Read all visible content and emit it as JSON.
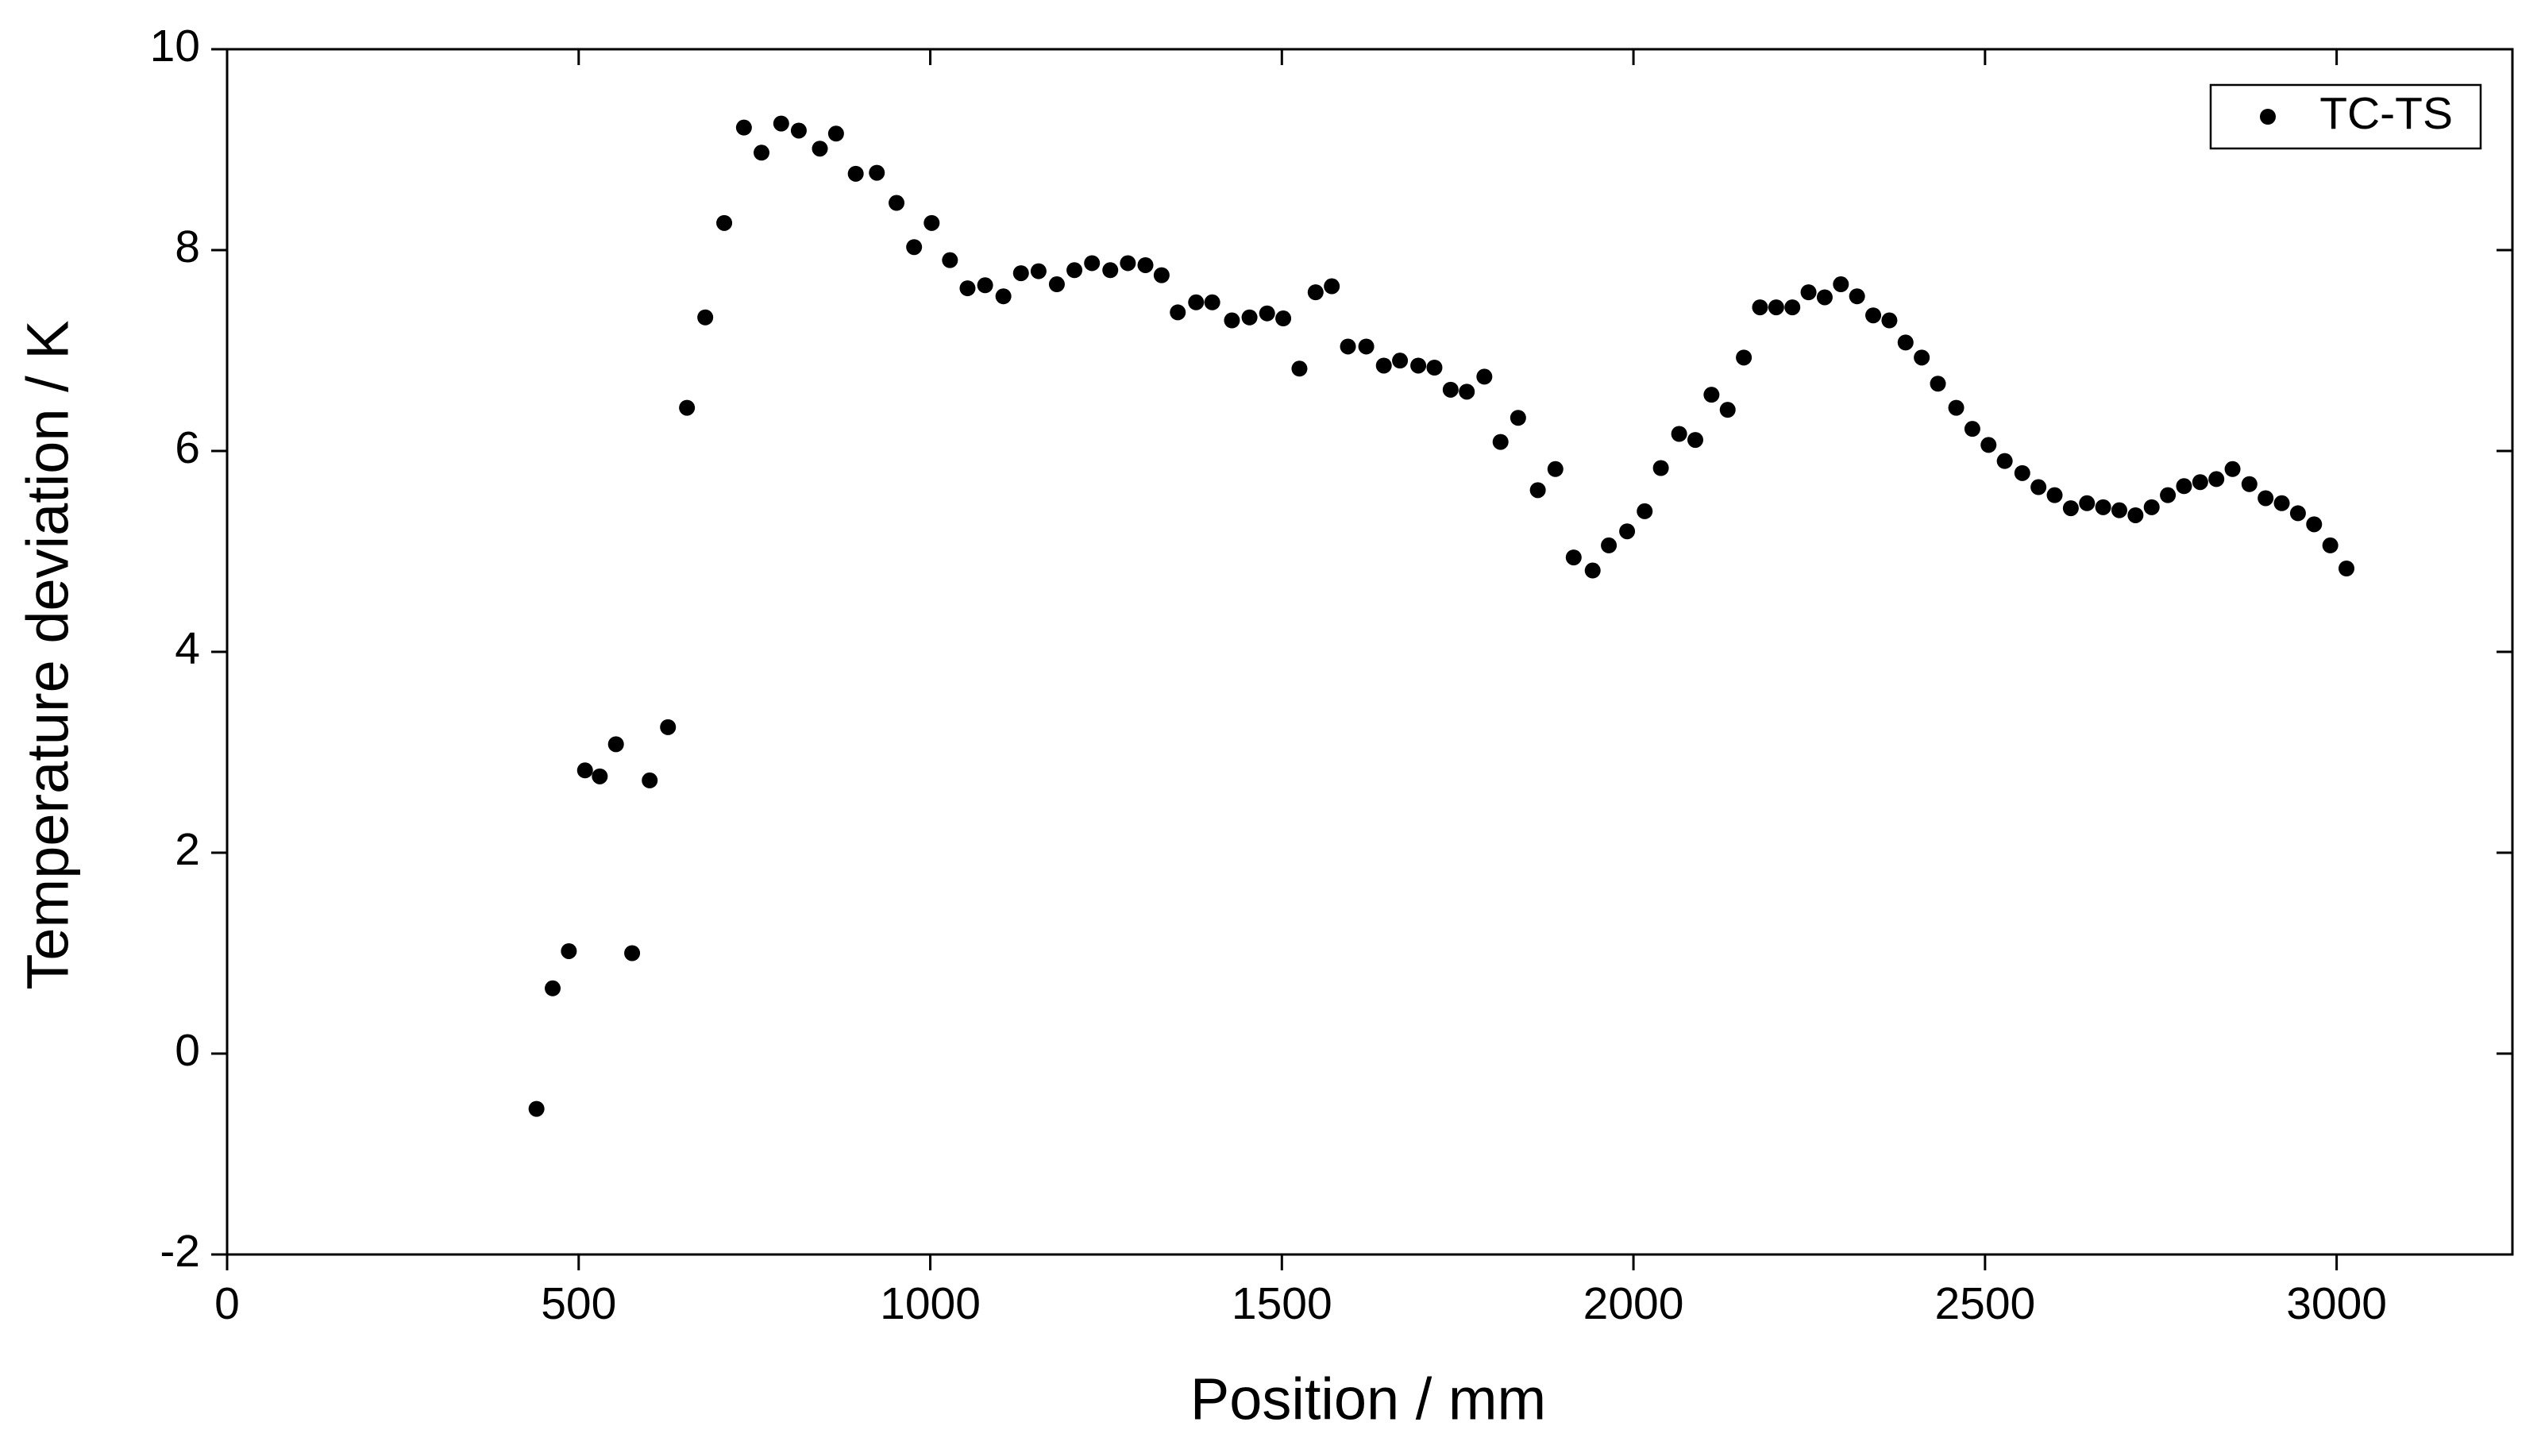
{
  "chart_data": {
    "type": "scatter",
    "x_label": "Position / mm",
    "y_label": "Temperature deviation / K",
    "x": [
      440,
      463,
      486,
      509,
      530,
      553,
      576,
      601,
      627,
      654,
      680,
      707,
      735,
      760,
      788,
      813,
      843,
      866,
      894,
      924,
      952,
      977,
      1002,
      1028,
      1053,
      1078,
      1104,
      1129,
      1154,
      1180,
      1205,
      1230,
      1256,
      1281,
      1306,
      1329,
      1352,
      1378,
      1401,
      1429,
      1454,
      1479,
      1502,
      1525,
      1548,
      1571,
      1594,
      1620,
      1645,
      1668,
      1694,
      1717,
      1740,
      1763,
      1788,
      1811,
      1836,
      1864,
      1889,
      1915,
      1942,
      1965,
      1991,
      2016,
      2039,
      2065,
      2088,
      2111,
      2134,
      2157,
      2180,
      2203,
      2226,
      2249,
      2272,
      2295,
      2318,
      2341,
      2364,
      2387,
      2410,
      2433,
      2459,
      2482,
      2505,
      2528,
      2553,
      2576,
      2599,
      2622,
      2645,
      2668,
      2691,
      2714,
      2737,
      2760,
      2783,
      2806,
      2829,
      2852,
      2876,
      2899,
      2922,
      2945,
      2968,
      2991,
      3014
    ],
    "series": [
      {
        "name": "TC-TS",
        "color": "#000000",
        "values": [
          -0.55,
          0.65,
          1.02,
          2.82,
          2.76,
          3.08,
          1.0,
          2.72,
          3.25,
          6.43,
          7.33,
          8.27,
          9.22,
          8.97,
          9.26,
          9.19,
          9.01,
          9.16,
          8.76,
          8.77,
          8.47,
          8.03,
          8.27,
          7.9,
          7.62,
          7.65,
          7.54,
          7.77,
          7.79,
          7.66,
          7.8,
          7.87,
          7.8,
          7.87,
          7.85,
          7.75,
          7.38,
          7.48,
          7.48,
          7.3,
          7.33,
          7.37,
          7.32,
          6.82,
          7.58,
          7.64,
          7.04,
          7.04,
          6.85,
          6.9,
          6.85,
          6.83,
          6.61,
          6.59,
          6.74,
          6.09,
          6.33,
          5.61,
          5.82,
          4.94,
          4.81,
          5.06,
          5.2,
          5.4,
          5.83,
          6.17,
          6.11,
          6.56,
          6.41,
          6.93,
          7.43,
          7.43,
          7.43,
          7.58,
          7.53,
          7.66,
          7.54,
          7.35,
          7.3,
          7.08,
          6.93,
          6.67,
          6.43,
          6.22,
          6.06,
          5.9,
          5.78,
          5.64,
          5.56,
          5.43,
          5.48,
          5.44,
          5.41,
          5.36,
          5.44,
          5.56,
          5.65,
          5.69,
          5.72,
          5.82,
          5.67,
          5.53,
          5.48,
          5.38,
          5.27,
          5.06,
          4.83
        ]
      }
    ],
    "xlim": [
      0,
      3250
    ],
    "xticks": [
      0,
      500,
      1000,
      1500,
      2000,
      2500,
      3000
    ],
    "ylim": [
      -2,
      10
    ],
    "yticks": [
      -2,
      0,
      2,
      4,
      6,
      8,
      10
    ],
    "grid": false,
    "legend": "upper right"
  }
}
